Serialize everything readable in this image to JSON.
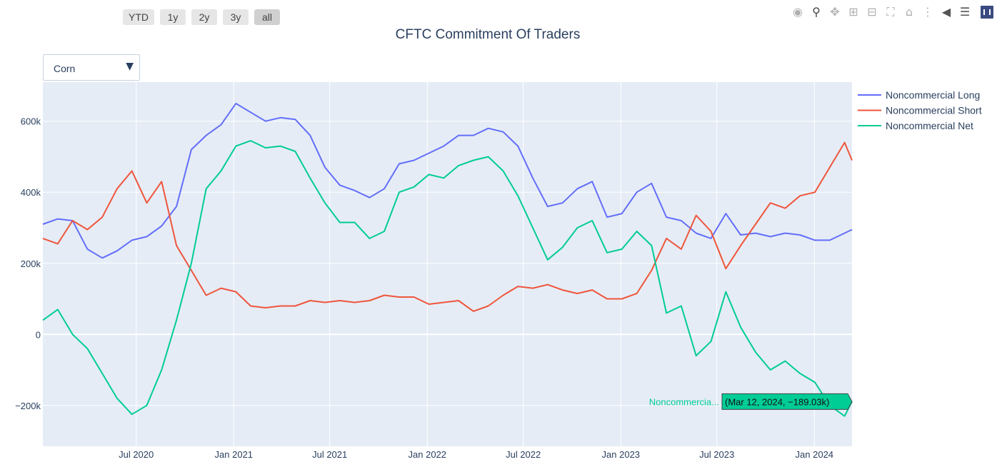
{
  "toolbar": {
    "range_buttons": [
      "YTD",
      "1y",
      "2y",
      "3y",
      "all"
    ],
    "active_range": "all",
    "modebar_icons": [
      "camera-icon",
      "zoom-icon",
      "pan-icon",
      "zoom-in-icon",
      "zoom-out-icon",
      "autoscale-icon",
      "reset-axes-icon",
      "spike-lines-icon",
      "hover-closest-icon",
      "hover-compare-icon",
      "plotly-logo-icon"
    ]
  },
  "dropdown": {
    "selected": "Corn"
  },
  "colors": {
    "long": "#636efa",
    "short": "#ef553b",
    "net": "#00cc96",
    "plot_bg": "#e5ecf6",
    "grid": "#ffffff",
    "text": "#2a3f5f"
  },
  "hover": {
    "name": "Noncommercia...",
    "text": "(Mar 12, 2024, −189.03k)",
    "date": "2024-03-12",
    "value": -189.03
  },
  "chart_data": {
    "type": "line",
    "title": "CFTC Commitment Of Traders",
    "xlabel": "",
    "ylabel": "",
    "xlim": [
      "2020-01-07",
      "2024-03-12"
    ],
    "ylim": [
      -315,
      710
    ],
    "y_tick_values": [
      -200,
      0,
      200,
      400,
      600
    ],
    "y_tick_labels": [
      "−200k",
      "0",
      "200k",
      "400k",
      "600k"
    ],
    "x_tick_dates": [
      "2020-07-01",
      "2021-01-01",
      "2021-07-01",
      "2022-01-01",
      "2022-07-01",
      "2023-01-01",
      "2023-07-01",
      "2024-01-01"
    ],
    "x_tick_labels": [
      "Jul 2020",
      "Jan 2021",
      "Jul 2021",
      "Jan 2022",
      "Jul 2022",
      "Jan 2023",
      "Jul 2023",
      "Jan 2024"
    ],
    "grid": true,
    "legend_position": "top-right",
    "x": [
      "2020-01-07",
      "2020-02-04",
      "2020-03-03",
      "2020-03-31",
      "2020-04-28",
      "2020-05-26",
      "2020-06-23",
      "2020-07-21",
      "2020-08-18",
      "2020-09-15",
      "2020-10-13",
      "2020-11-10",
      "2020-12-08",
      "2021-01-05",
      "2021-02-02",
      "2021-03-02",
      "2021-03-30",
      "2021-04-27",
      "2021-05-25",
      "2021-06-22",
      "2021-07-20",
      "2021-08-17",
      "2021-09-14",
      "2021-10-12",
      "2021-11-09",
      "2021-12-07",
      "2022-01-04",
      "2022-02-01",
      "2022-03-01",
      "2022-03-29",
      "2022-04-26",
      "2022-05-24",
      "2022-06-21",
      "2022-07-19",
      "2022-08-16",
      "2022-09-13",
      "2022-10-11",
      "2022-11-08",
      "2022-12-06",
      "2023-01-03",
      "2023-01-31",
      "2023-02-28",
      "2023-03-28",
      "2023-04-25",
      "2023-05-23",
      "2023-06-20",
      "2023-07-18",
      "2023-08-15",
      "2023-09-12",
      "2023-10-10",
      "2023-11-07",
      "2023-12-05",
      "2024-01-02",
      "2024-01-30",
      "2024-02-27",
      "2024-03-12"
    ],
    "series": [
      {
        "name": "Noncommercial Long",
        "values": [
          310,
          325,
          320,
          240,
          215,
          235,
          265,
          275,
          305,
          360,
          520,
          560,
          590,
          650,
          625,
          600,
          610,
          605,
          560,
          470,
          420,
          405,
          385,
          410,
          480,
          490,
          510,
          530,
          560,
          560,
          580,
          570,
          530,
          440,
          360,
          370,
          410,
          430,
          330,
          340,
          400,
          425,
          330,
          320,
          285,
          270,
          340,
          280,
          285,
          275,
          285,
          280,
          265,
          265,
          285,
          295
        ]
      },
      {
        "name": "Noncommercial Short",
        "values": [
          270,
          255,
          320,
          295,
          330,
          410,
          460,
          370,
          430,
          250,
          180,
          110,
          130,
          120,
          80,
          75,
          80,
          80,
          95,
          90,
          95,
          90,
          95,
          110,
          105,
          105,
          85,
          90,
          95,
          65,
          80,
          110,
          135,
          130,
          140,
          125,
          115,
          125,
          100,
          100,
          115,
          180,
          270,
          240,
          335,
          290,
          185,
          250,
          310,
          370,
          355,
          390,
          400,
          470,
          540,
          490
        ]
      },
      {
        "name": "Noncommercial Net",
        "values": [
          40,
          70,
          0,
          -40,
          -110,
          -180,
          -225,
          -200,
          -100,
          40,
          200,
          410,
          460,
          530,
          545,
          525,
          530,
          515,
          440,
          370,
          315,
          315,
          270,
          290,
          400,
          415,
          450,
          440,
          475,
          490,
          500,
          460,
          390,
          300,
          210,
          245,
          300,
          320,
          230,
          240,
          290,
          250,
          60,
          80,
          -60,
          -20,
          120,
          20,
          -50,
          -100,
          -75,
          -110,
          -135,
          -200,
          -230,
          -189.03
        ]
      }
    ]
  }
}
